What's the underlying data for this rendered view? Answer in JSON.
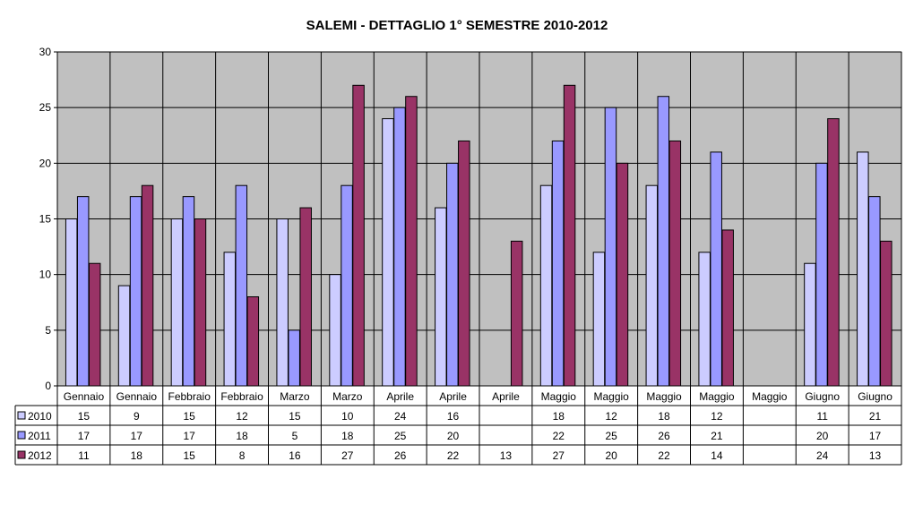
{
  "chart_data": {
    "type": "bar",
    "title": "SALEMI  -  DETTAGLIO 1° SEMESTRE  2010-2012",
    "categories": [
      "Gennaio",
      "Gennaio",
      "Febbraio",
      "Febbraio",
      "Marzo",
      "Marzo",
      "Aprile",
      "Aprile",
      "Aprile",
      "Maggio",
      "Maggio",
      "Maggio",
      "Maggio",
      "Maggio",
      "Giugno",
      "Giugno"
    ],
    "series": [
      {
        "name": "2010",
        "color": "#CCCCFF",
        "values": [
          15,
          9,
          15,
          12,
          15,
          10,
          24,
          16,
          null,
          18,
          12,
          18,
          12,
          null,
          11,
          21
        ]
      },
      {
        "name": "2011",
        "color": "#9999FF",
        "values": [
          17,
          17,
          17,
          18,
          5,
          18,
          25,
          20,
          null,
          22,
          25,
          26,
          21,
          null,
          20,
          17
        ]
      },
      {
        "name": "2012",
        "color": "#993366",
        "values": [
          11,
          18,
          15,
          8,
          16,
          27,
          26,
          22,
          13,
          27,
          20,
          22,
          14,
          null,
          24,
          13
        ]
      }
    ],
    "ylim": [
      0,
      30
    ],
    "yticks": [
      0,
      5,
      10,
      15,
      20,
      25,
      30
    ],
    "plot_background": "#C0C0C0",
    "grid": true,
    "legend": "data-table-left",
    "data_table": true
  }
}
